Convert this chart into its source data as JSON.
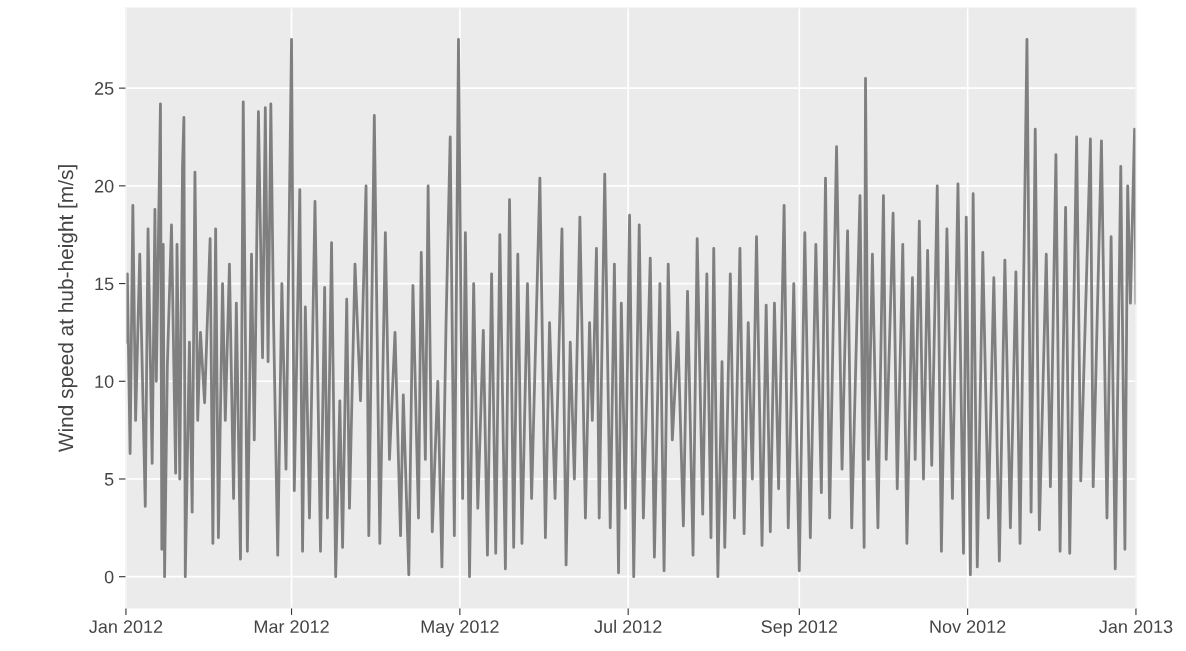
{
  "chart_data": {
    "type": "line",
    "ylabel": "Wind speed at hub-height [m/s]",
    "x": [
      "2012-01-01T00:00",
      "2012-01-01T12:00",
      "2012-01-02T12:00",
      "2012-01-03T12:00",
      "2012-01-04T12:00",
      "2012-01-06T00:00",
      "2012-01-08T00:00",
      "2012-01-09T00:00",
      "2012-01-10T12:00",
      "2012-01-11T12:00",
      "2012-01-12T00:00",
      "2012-01-13T12:00",
      "2012-01-14T00:00",
      "2012-01-14T12:00",
      "2012-01-15T00:00",
      "2012-01-16T00:00",
      "2012-01-17T12:00",
      "2012-01-19T00:00",
      "2012-01-19T12:00",
      "2012-01-20T12:00",
      "2012-01-21T12:00",
      "2012-01-22T00:00",
      "2012-01-22T12:00",
      "2012-01-24T00:00",
      "2012-01-25T00:00",
      "2012-01-26T00:00",
      "2012-01-27T00:00",
      "2012-01-28T00:00",
      "2012-01-29T12:00",
      "2012-01-31T12:00",
      "2012-02-01T12:00",
      "2012-02-02T12:00",
      "2012-02-03T12:00",
      "2012-02-05T00:00",
      "2012-02-06T00:00",
      "2012-02-07T12:00",
      "2012-02-09T00:00",
      "2012-02-10T00:00",
      "2012-02-11T12:00",
      "2012-02-12T12:00",
      "2012-02-14T00:00",
      "2012-02-15T12:00",
      "2012-02-16T12:00",
      "2012-02-18T00:00",
      "2012-02-19T12:00",
      "2012-02-20T12:00",
      "2012-02-21T12:00",
      "2012-02-22T12:00",
      "2012-02-23T12:00",
      "2012-02-25T00:00",
      "2012-02-26T12:00",
      "2012-02-28T00:00",
      "2012-03-01T00:00",
      "2012-03-02T00:00",
      "2012-03-04T00:00",
      "2012-03-05T00:00",
      "2012-03-06T00:00",
      "2012-03-07T12:00",
      "2012-03-09T12:00",
      "2012-03-11T12:00",
      "2012-03-13T00:00",
      "2012-03-14T00:00",
      "2012-03-15T12:00",
      "2012-03-17T00:00",
      "2012-03-18T12:00",
      "2012-03-19T12:00",
      "2012-03-21T00:00",
      "2012-03-22T00:00",
      "2012-03-24T00:00",
      "2012-03-26T00:00",
      "2012-03-28T00:00",
      "2012-03-29T00:00",
      "2012-03-31T00:00",
      "2012-04-02T00:00",
      "2012-04-04T00:00",
      "2012-04-05T12:00",
      "2012-04-07T12:00",
      "2012-04-09T12:00",
      "2012-04-10T12:00",
      "2012-04-12T12:00",
      "2012-04-14T00:00",
      "2012-04-16T00:00",
      "2012-04-17T00:00",
      "2012-04-18T12:00",
      "2012-04-19T12:00",
      "2012-04-21T00:00",
      "2012-04-23T00:00",
      "2012-04-24T12:00",
      "2012-04-26T00:00",
      "2012-04-27T12:00",
      "2012-04-29T00:00",
      "2012-04-30T12:00",
      "2012-05-02T00:00",
      "2012-05-03T00:00",
      "2012-05-04T12:00",
      "2012-05-06T00:00",
      "2012-05-07T12:00",
      "2012-05-09T12:00",
      "2012-05-11T00:00",
      "2012-05-12T12:00",
      "2012-05-14T00:00",
      "2012-05-15T12:00",
      "2012-05-17T12:00",
      "2012-05-19T00:00",
      "2012-05-20T12:00",
      "2012-05-22T00:00",
      "2012-05-23T12:00",
      "2012-05-25T12:00",
      "2012-05-27T00:00",
      "2012-05-30T00:00",
      "2012-06-01T00:00",
      "2012-06-02T12:00",
      "2012-06-04T12:00",
      "2012-06-07T00:00",
      "2012-06-08T12:00",
      "2012-06-10T00:00",
      "2012-06-11T12:00",
      "2012-06-13T12:00",
      "2012-06-15T12:00",
      "2012-06-17T00:00",
      "2012-06-18T00:00",
      "2012-06-19T12:00",
      "2012-06-20T12:00",
      "2012-06-22T12:00",
      "2012-06-24T12:00",
      "2012-06-26T00:00",
      "2012-06-27T12:00",
      "2012-06-28T12:00",
      "2012-06-30T00:00",
      "2012-07-01T12:00",
      "2012-07-03T00:00",
      "2012-07-05T00:00",
      "2012-07-06T12:00",
      "2012-07-09T00:00",
      "2012-07-10T12:00",
      "2012-07-12T12:00",
      "2012-07-14T00:00",
      "2012-07-15T12:00",
      "2012-07-17T00:00",
      "2012-07-19T00:00",
      "2012-07-21T00:00",
      "2012-07-22T12:00",
      "2012-07-24T12:00",
      "2012-07-26T00:00",
      "2012-07-28T00:00",
      "2012-07-29T12:00",
      "2012-07-31T00:00",
      "2012-08-01T00:00",
      "2012-08-02T12:00",
      "2012-08-04T00:00",
      "2012-08-05T00:00",
      "2012-08-07T00:00",
      "2012-08-08T12:00",
      "2012-08-10T12:00",
      "2012-08-12T00:00",
      "2012-08-13T12:00",
      "2012-08-15T00:00",
      "2012-08-16T12:00",
      "2012-08-18T12:00",
      "2012-08-20T00:00",
      "2012-08-21T12:00",
      "2012-08-23T00:00",
      "2012-08-24T12:00",
      "2012-08-26T12:00",
      "2012-08-28T00:00",
      "2012-08-30T00:00",
      "2012-09-01T00:00",
      "2012-09-03T00:00",
      "2012-09-05T00:00",
      "2012-09-07T00:00",
      "2012-09-09T00:00",
      "2012-09-10T12:00",
      "2012-09-12T00:00",
      "2012-09-14T12:00",
      "2012-09-16T12:00",
      "2012-09-18T12:00",
      "2012-09-20T00:00",
      "2012-09-23T00:00",
      "2012-09-24T12:00",
      "2012-09-25T00:00",
      "2012-09-26T00:00",
      "2012-09-27T12:00",
      "2012-09-29T12:00",
      "2012-10-01T12:00",
      "2012-10-02T12:00",
      "2012-10-05T00:00",
      "2012-10-06T12:00",
      "2012-10-08T12:00",
      "2012-10-10T00:00",
      "2012-10-12T00:00",
      "2012-10-13T00:00",
      "2012-10-14T12:00",
      "2012-10-16T00:00",
      "2012-10-17T12:00",
      "2012-10-19T00:00",
      "2012-10-21T00:00",
      "2012-10-22T12:00",
      "2012-10-24T12:00",
      "2012-10-26T12:00",
      "2012-10-28T12:00",
      "2012-10-30T12:00",
      "2012-10-31T12:00",
      "2012-11-02T00:00",
      "2012-11-03T00:00",
      "2012-11-04T12:00",
      "2012-11-06T12:00",
      "2012-11-08T12:00",
      "2012-11-10T12:00",
      "2012-11-12T12:00",
      "2012-11-14T12:00",
      "2012-11-16T12:00",
      "2012-11-18T12:00",
      "2012-11-20T00:00",
      "2012-11-22T12:00",
      "2012-11-24T00:00",
      "2012-11-25T12:00",
      "2012-11-27T00:00",
      "2012-11-29T12:00",
      "2012-12-01T00:00",
      "2012-12-03T00:00",
      "2012-12-04T12:00",
      "2012-12-06T12:00",
      "2012-12-08T00:00",
      "2012-12-10T12:00",
      "2012-12-12T00:00",
      "2012-12-15T12:00",
      "2012-12-16T12:00",
      "2012-12-19T12:00",
      "2012-12-21T12:00",
      "2012-12-23T00:00",
      "2012-12-24T12:00",
      "2012-12-26T12:00",
      "2012-12-28T00:00",
      "2012-12-29T00:00",
      "2012-12-30T00:00",
      "2012-12-31T00:00",
      "2012-12-31T12:00",
      "2013-01-01T00:00"
    ],
    "series": [
      {
        "color": "#7f7f7f",
        "values": [
          12,
          15.5,
          6.3,
          19,
          8,
          16.5,
          3.6,
          17.8,
          5.8,
          18.8,
          10,
          24.2,
          1.4,
          17,
          0,
          10.8,
          18,
          5.3,
          17,
          5,
          21,
          23.5,
          0,
          12,
          3.3,
          20.7,
          8,
          12.5,
          8.9,
          17.3,
          1.7,
          17.8,
          2,
          15,
          8,
          16,
          4,
          14,
          0.9,
          24.3,
          1.3,
          16.5,
          7,
          23.8,
          11.2,
          24,
          11,
          24.2,
          13,
          1.1,
          15,
          5.5,
          27.5,
          4.4,
          19.8,
          1.3,
          13.8,
          3,
          19.2,
          1.3,
          14.8,
          3,
          17.1,
          0,
          9,
          1.5,
          14.2,
          3.5,
          16,
          9,
          20,
          2.1,
          23.6,
          1.7,
          17.6,
          6,
          12.5,
          2.1,
          9.3,
          0.1,
          14.9,
          3,
          16.6,
          6,
          20,
          2.3,
          10,
          0.5,
          13,
          22.5,
          2.1,
          27.5,
          4,
          17.6,
          0,
          15,
          3.5,
          12.6,
          1.1,
          15.5,
          1.2,
          17.5,
          0.4,
          19.3,
          1.5,
          16.5,
          1.7,
          15,
          4,
          20.4,
          2,
          13,
          4,
          17.8,
          0.6,
          12,
          5,
          18.4,
          3,
          13,
          8,
          16.8,
          3,
          20.6,
          2.5,
          16,
          0.2,
          14,
          3.5,
          18.5,
          0,
          18,
          3,
          16.3,
          1,
          15,
          0.3,
          16,
          7,
          12.5,
          2.6,
          14.6,
          1.1,
          17.3,
          3.2,
          15.5,
          2,
          16.8,
          0,
          11,
          1.5,
          15.5,
          3,
          16.8,
          2.2,
          13,
          5,
          17.4,
          1.6,
          13.9,
          2.3,
          14,
          4.5,
          19,
          2.5,
          15,
          0.3,
          17.6,
          2,
          17,
          4.3,
          20.4,
          3,
          22,
          5.5,
          17.7,
          2.5,
          19.5,
          1.5,
          25.5,
          6,
          16.5,
          2.5,
          19.5,
          6,
          18.6,
          4.5,
          17,
          1.7,
          15.3,
          6,
          18.2,
          5,
          16.7,
          5.7,
          20,
          1.3,
          17.8,
          4,
          20.1,
          1.2,
          18.4,
          0.1,
          19.6,
          0.5,
          16.6,
          3,
          15.3,
          0.8,
          16.2,
          2.5,
          15.6,
          1.7,
          27.5,
          3.3,
          22.9,
          2.4,
          16.5,
          4.6,
          21.6,
          1.3,
          18.9,
          1.2,
          22.5,
          4.9,
          22.4,
          4.6,
          22.3,
          3,
          17.4,
          0.4,
          21,
          1.4,
          20,
          14,
          20,
          22.9,
          14
        ]
      }
    ],
    "xlim": [
      "2012-01-01",
      "2013-01-01"
    ],
    "xticks": [
      {
        "value": "2012-01-01",
        "label": "Jan 2012"
      },
      {
        "value": "2012-03-01",
        "label": "Mar 2012"
      },
      {
        "value": "2012-05-01",
        "label": "May 2012"
      },
      {
        "value": "2012-07-01",
        "label": "Jul 2012"
      },
      {
        "value": "2012-09-01",
        "label": "Sep 2012"
      },
      {
        "value": "2012-11-01",
        "label": "Nov 2012"
      },
      {
        "value": "2013-01-01",
        "label": "Jan 2013"
      }
    ],
    "ylim": [
      -1.6,
      29.1
    ],
    "yticks": [
      0,
      5,
      10,
      15,
      20,
      25
    ],
    "grid": true,
    "legend": false
  }
}
